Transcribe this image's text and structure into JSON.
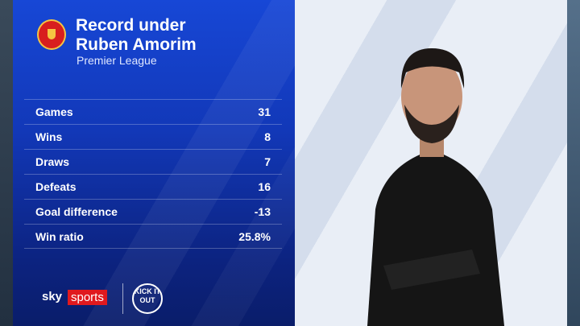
{
  "header": {
    "title_line1": "Record under",
    "title_line2": "Ruben Amorim",
    "subtitle": "Premier League"
  },
  "stats": [
    {
      "label": "Games",
      "value": "31"
    },
    {
      "label": "Wins",
      "value": "8"
    },
    {
      "label": "Draws",
      "value": "7"
    },
    {
      "label": "Defeats",
      "value": "16"
    },
    {
      "label": "Goal difference",
      "value": "-13"
    },
    {
      "label": "Win ratio",
      "value": "25.8%"
    }
  ],
  "branding": {
    "sky": "sky",
    "sports": "sports",
    "kick_it_out": "KICK IT OUT"
  },
  "colors": {
    "panel": "#1747d6",
    "sky_red": "#e0191e"
  }
}
